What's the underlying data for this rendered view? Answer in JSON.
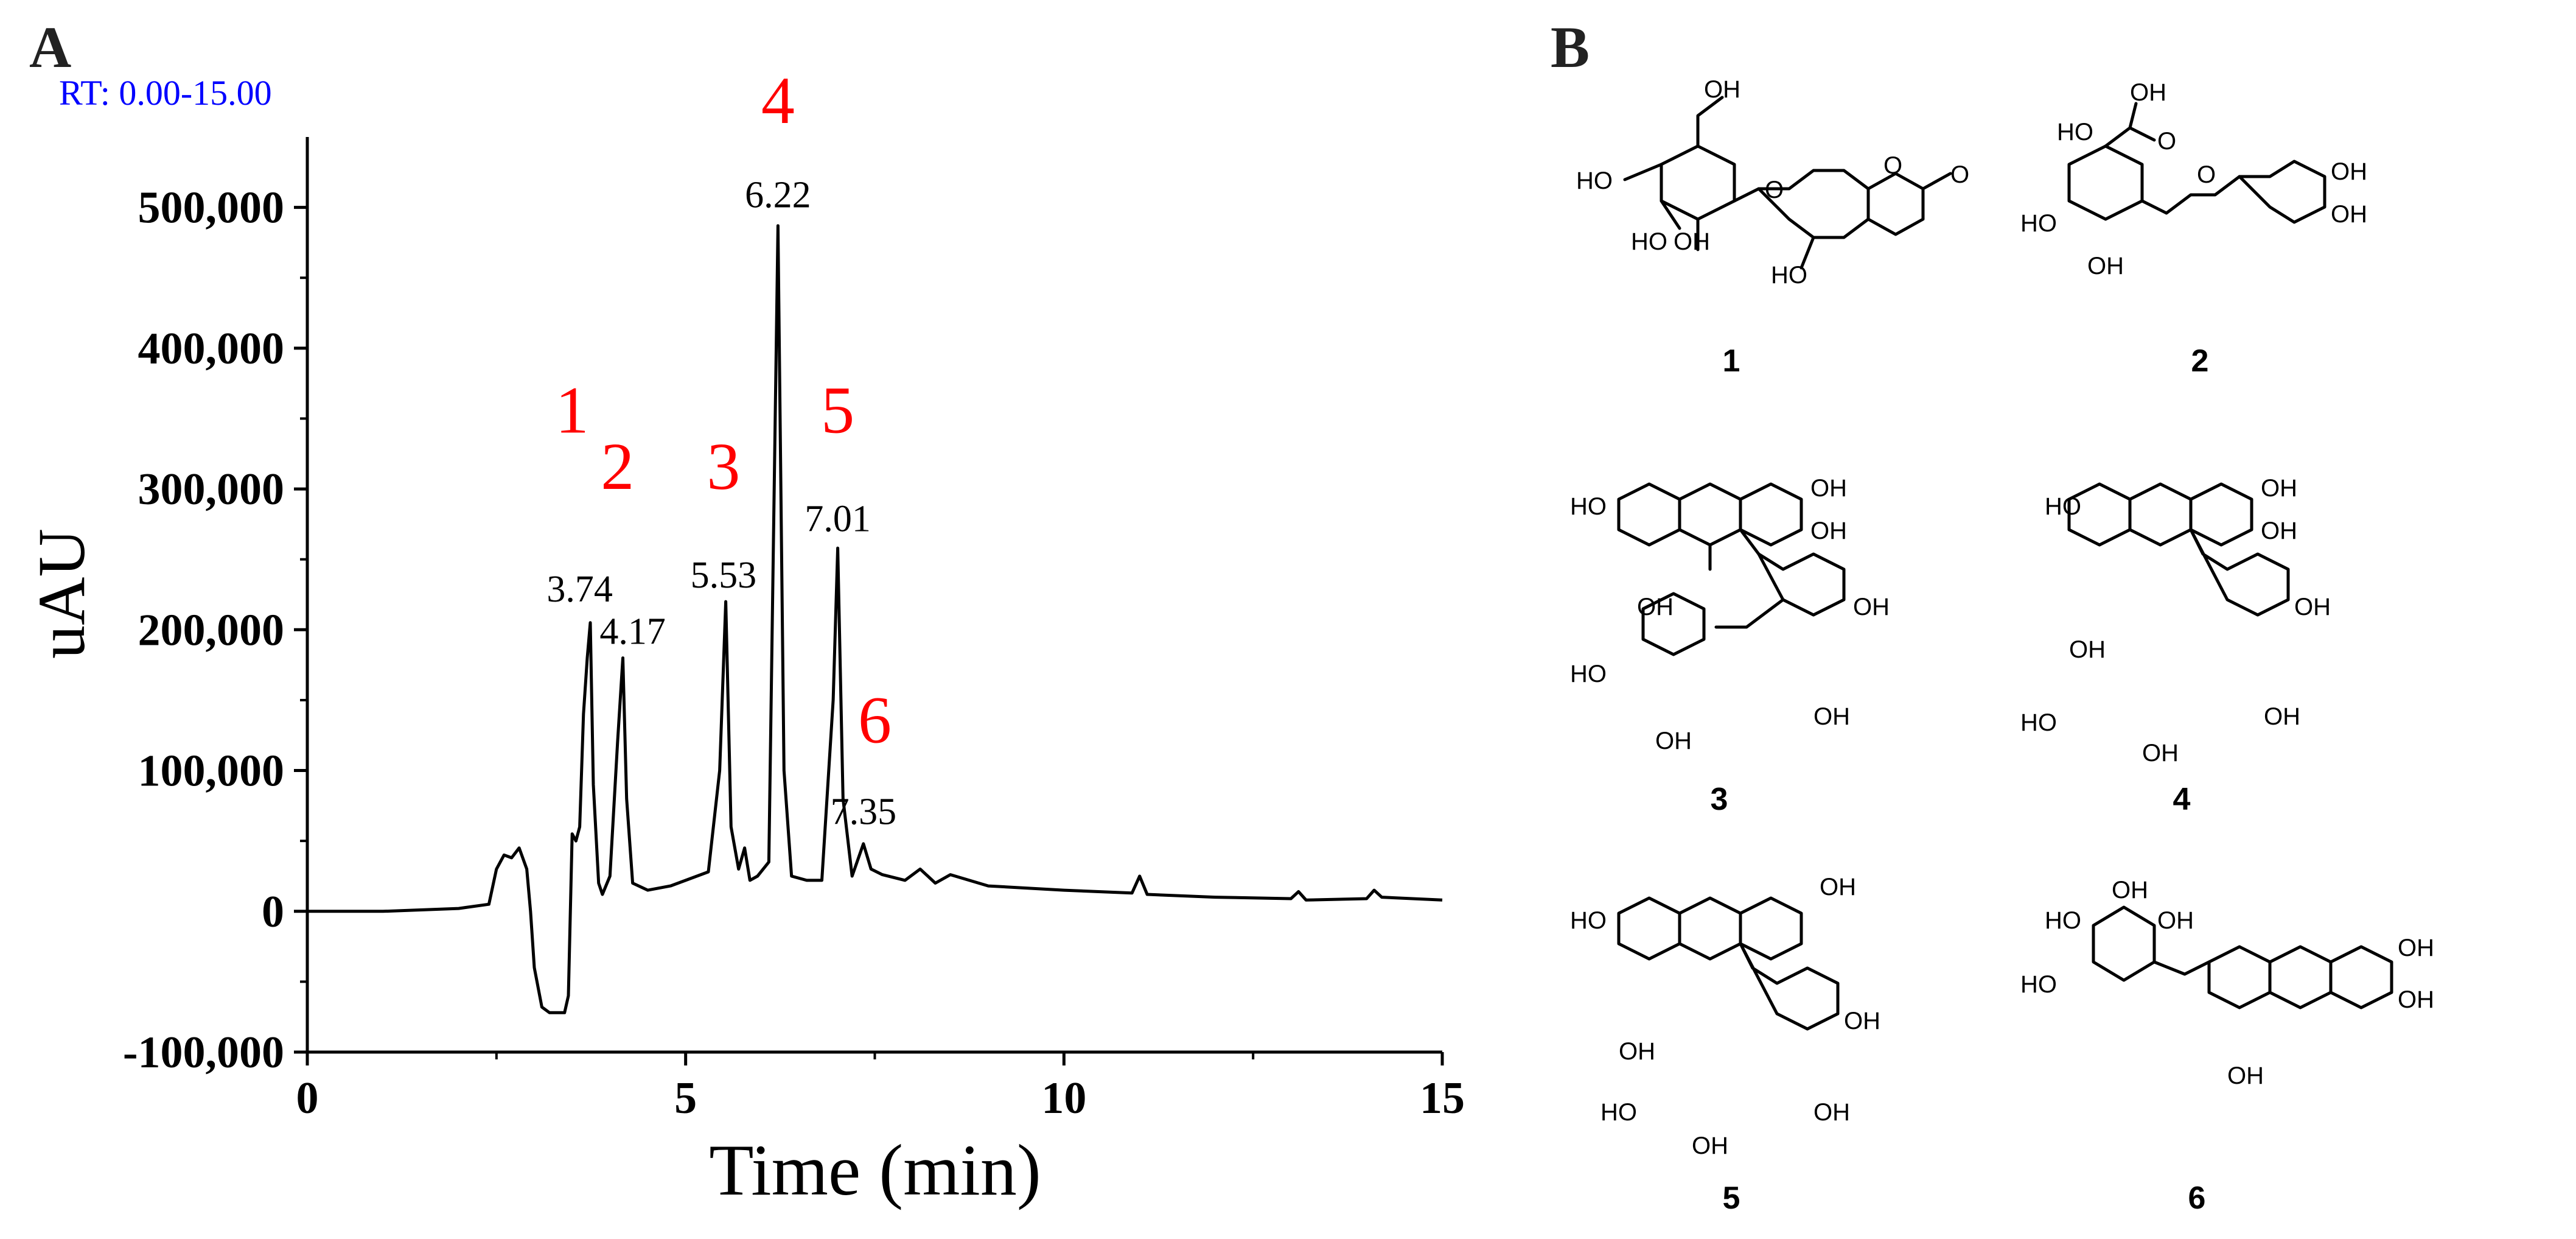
{
  "panel_a": {
    "letter": "A",
    "rt_range": "RT: 0.00-15.00"
  },
  "panel_b": {
    "letter": "B",
    "compounds": [
      {
        "label": "1"
      },
      {
        "label": "2"
      },
      {
        "label": "3"
      },
      {
        "label": "4"
      },
      {
        "label": "5"
      },
      {
        "label": "6"
      }
    ],
    "atom_text": {
      "oh": "OH",
      "ho": "HO",
      "o": "O"
    }
  },
  "chart_data": {
    "type": "line",
    "title": "",
    "xlabel": "Time (min)",
    "ylabel": "uAU",
    "xlim": [
      0,
      15
    ],
    "ylim": [
      -100000,
      550000
    ],
    "xticks": [
      0,
      5,
      10,
      15
    ],
    "yticks": [
      -100000,
      0,
      100000,
      200000,
      300000,
      400000,
      500000
    ],
    "xtick_labels": [
      "0",
      "5",
      "10",
      "15"
    ],
    "ytick_labels": [
      "-100,000",
      "0",
      "100,000",
      "200,000",
      "300,000",
      "400,000",
      "500,000"
    ],
    "grid": false,
    "series": [
      {
        "x": [
          0,
          1.0,
          2.0,
          2.4,
          2.5,
          2.6,
          2.7,
          2.8,
          2.9,
          2.95,
          3.0,
          3.1,
          3.2,
          3.3,
          3.4,
          3.45,
          3.5,
          3.55,
          3.6,
          3.65,
          3.7,
          3.74,
          3.78,
          3.85,
          3.9,
          4.0,
          4.1,
          4.17,
          4.22,
          4.3,
          4.5,
          4.8,
          5.0,
          5.3,
          5.45,
          5.53,
          5.6,
          5.7,
          5.78,
          5.85,
          5.95,
          6.1,
          6.22,
          6.3,
          6.4,
          6.6,
          6.8,
          6.95,
          7.01,
          7.08,
          7.2,
          7.35,
          7.45,
          7.6,
          7.9,
          8.1,
          8.3,
          8.5,
          9.0,
          10.0,
          10.9,
          11.0,
          11.1,
          12.0,
          13.0,
          13.1,
          13.2,
          14.0,
          14.1,
          14.2,
          15.0
        ],
        "y": [
          0,
          0,
          2000,
          5000,
          30000,
          40000,
          38000,
          45000,
          30000,
          0,
          -40000,
          -68000,
          -72000,
          -72000,
          -72000,
          -60000,
          55000,
          50000,
          60000,
          140000,
          180000,
          205000,
          90000,
          20000,
          12000,
          25000,
          120000,
          180000,
          80000,
          20000,
          15000,
          18000,
          22000,
          28000,
          100000,
          220000,
          60000,
          30000,
          45000,
          22000,
          25000,
          35000,
          487000,
          100000,
          25000,
          22000,
          22000,
          150000,
          258000,
          80000,
          25000,
          48000,
          30000,
          26000,
          22000,
          30000,
          20000,
          26000,
          18000,
          15000,
          13000,
          25000,
          12000,
          10000,
          9000,
          14000,
          8000,
          9000,
          15000,
          10000,
          8000
        ]
      }
    ],
    "annotations": [
      {
        "text": "1",
        "x": 3.5,
        "y": 340000
      },
      {
        "text": "2",
        "x": 4.1,
        "y": 300000
      },
      {
        "text": "3",
        "x": 5.5,
        "y": 300000
      },
      {
        "text": "4",
        "x": 6.22,
        "y": 560000
      },
      {
        "text": "5",
        "x": 7.01,
        "y": 340000
      },
      {
        "text": "6",
        "x": 7.5,
        "y": 120000
      },
      {
        "text": "3.74",
        "x": 3.6,
        "y": 220000
      },
      {
        "text": "4.17",
        "x": 4.3,
        "y": 190000
      },
      {
        "text": "5.53",
        "x": 5.5,
        "y": 230000
      },
      {
        "text": "6.22",
        "x": 6.22,
        "y": 500000
      },
      {
        "text": "7.01",
        "x": 7.01,
        "y": 270000
      },
      {
        "text": "7.35",
        "x": 7.35,
        "y": 62000
      }
    ]
  }
}
